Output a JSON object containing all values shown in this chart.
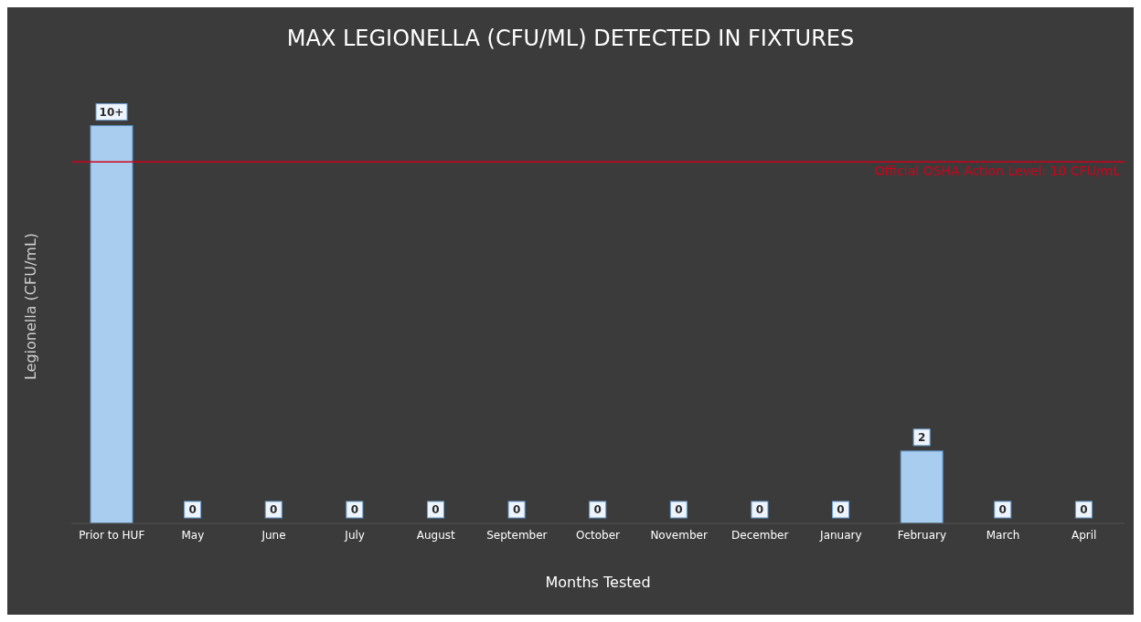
{
  "chart_data": {
    "type": "bar",
    "title": "MAX LEGIONELLA (CFU/ML) DETECTED IN FIXTURES",
    "xlabel": "Months Tested",
    "ylabel": "Legionella (CFU/mL)",
    "categories": [
      "Prior to HUF",
      "May",
      "June",
      "July",
      "August",
      "September",
      "October",
      "November",
      "December",
      "January",
      "February",
      "March",
      "April"
    ],
    "values": [
      11,
      0,
      0,
      0,
      0,
      0,
      0,
      0,
      0,
      0,
      2,
      0,
      0
    ],
    "value_labels": [
      "10+",
      "0",
      "0",
      "0",
      "0",
      "0",
      "0",
      "0",
      "0",
      "0",
      "2",
      "0",
      "0"
    ],
    "color": "#a9cdef",
    "grid": false,
    "legend": false,
    "ref_lines": [
      {
        "axis": "y",
        "value": 10,
        "label": "Official OSHA Action Level: 10 CFU/mL",
        "color": "#d0021b"
      }
    ]
  }
}
